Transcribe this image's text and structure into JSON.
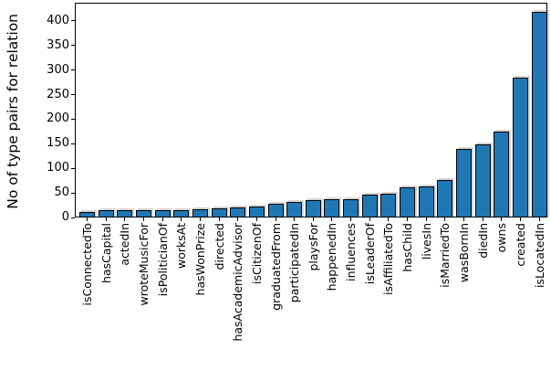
{
  "chart_data": {
    "type": "bar",
    "title": "",
    "xlabel": "",
    "ylabel": "No of type pairs for relation",
    "categories": [
      "isConnectedTo",
      "hasCapital",
      "actedIn",
      "wroteMusicFor",
      "isPoliticianOf",
      "worksAt",
      "hasWonPrize",
      "directed",
      "hasAcademicAdvisor",
      "isCitizenOf",
      "graduatedFrom",
      "participatedIn",
      "playsFor",
      "happenedIn",
      "influences",
      "isLeaderOf",
      "isAffiliatedTo",
      "hasChild",
      "livesIn",
      "isMarriedTo",
      "wasBornIn",
      "diedIn",
      "owns",
      "created",
      "isLocatedIn"
    ],
    "values": [
      11,
      15,
      14,
      14,
      14,
      14,
      17,
      19,
      20,
      23,
      27,
      32,
      36,
      37,
      38,
      46,
      48,
      61,
      63,
      76,
      140,
      148,
      175,
      284,
      418
    ],
    "yticks": [
      0,
      50,
      100,
      150,
      200,
      250,
      300,
      350,
      400
    ],
    "ylim": [
      0,
      437
    ],
    "grid": false,
    "legend": null,
    "xtick_rotation_deg": 90,
    "bar_color": "#1f77b4",
    "bar_edge_color": "#000000",
    "bar_shadow_color": "#d6d6d6",
    "background_color": "#ffffff"
  }
}
